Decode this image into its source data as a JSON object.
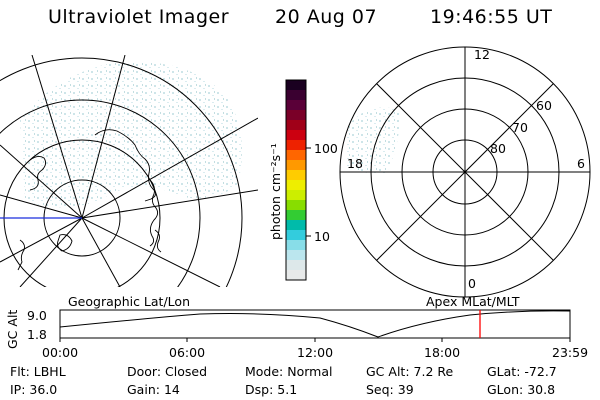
{
  "header": {
    "instrument": "Ultraviolet Imager",
    "date": "20 Aug 07",
    "time": "19:46:55 UT"
  },
  "geo_panel": {
    "label": "Geographic Lat/Lon"
  },
  "color_bar": {
    "unit_label": "photon cm⁻²s⁻¹",
    "tick_labels": [
      "100",
      "10"
    ],
    "colors": [
      "#1a0020",
      "#3a0030",
      "#5a0038",
      "#7a0028",
      "#a00018",
      "#cc0010",
      "#ee2200",
      "#ff6600",
      "#ff9900",
      "#ffcc00",
      "#eeee00",
      "#ccee00",
      "#88dd00",
      "#33cc33",
      "#00bbaa",
      "#33ccdd",
      "#88dde8",
      "#bbe6ee",
      "#dde8ea",
      "#e8eaea"
    ]
  },
  "polar_panel": {
    "label": "Apex MLat/MLT",
    "mlt_labels": {
      "top": "12",
      "left": "18",
      "right": "6",
      "bottom": "0"
    },
    "lat_labels": [
      "60",
      "70",
      "80"
    ]
  },
  "altitude_plot": {
    "ylabel": "GC Alt",
    "ytick_top": "9.0",
    "ytick_bottom": "1.8",
    "xticks": [
      "00:00",
      "06:00",
      "12:00",
      "18:00",
      "23:59"
    ],
    "current_time_marker_color": "#ff0000"
  },
  "status": {
    "row1": [
      {
        "key": "Flt:",
        "value": "LBHL"
      },
      {
        "key": "Door:",
        "value": "Closed"
      },
      {
        "key": "Mode:",
        "value": "Normal"
      },
      {
        "key": "GC Alt:",
        "value": "7.2 Re"
      },
      {
        "key": "GLat:",
        "value": "-72.7"
      }
    ],
    "row2": [
      {
        "key": "IP:",
        "value": "36.0"
      },
      {
        "key": "Gain:",
        "value": "14"
      },
      {
        "key": "Dsp:",
        "value": "5.1"
      },
      {
        "key": "Seq:",
        "value": "39"
      },
      {
        "key": "GLon:",
        "value": "30.8"
      }
    ]
  }
}
